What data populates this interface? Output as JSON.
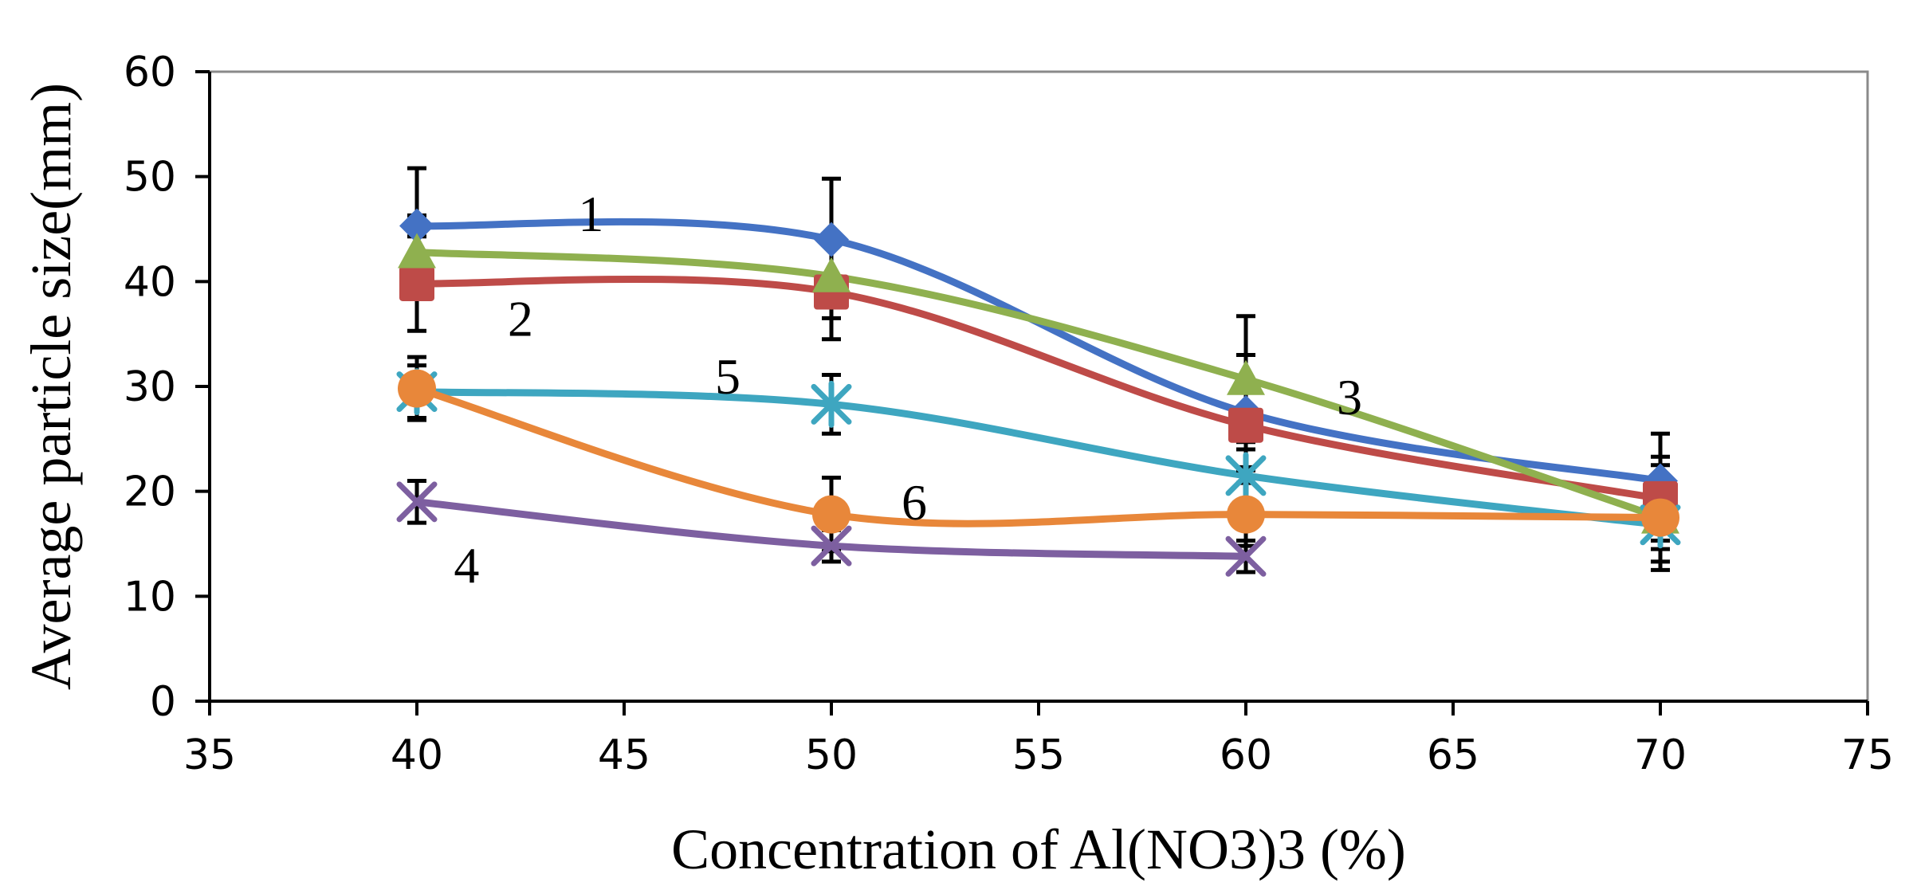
{
  "chart_data": {
    "type": "line",
    "title": "",
    "xlabel": "Concentration of Al(NO3)3 (%)",
    "ylabel": "Average particle size(mm)",
    "xlim": [
      35,
      75
    ],
    "ylim": [
      0,
      60
    ],
    "xticks": [
      "35",
      "40",
      "45",
      "50",
      "55",
      "60",
      "65",
      "70",
      "75"
    ],
    "yticks": [
      "0",
      "10",
      "20",
      "30",
      "40",
      "50",
      "60"
    ],
    "grid": false,
    "legend": "none",
    "series": [
      {
        "name": "1",
        "label": "1",
        "color": "#4472C4",
        "marker": "diamond",
        "x": [
          40,
          50,
          60,
          70
        ],
        "y": [
          45.3,
          44.0,
          27.5,
          21.0
        ],
        "err": [
          5.5,
          5.8,
          5.5,
          4.5
        ]
      },
      {
        "name": "2",
        "label": "2",
        "color": "#BE4B48",
        "marker": "square",
        "x": [
          40,
          50,
          60,
          70
        ],
        "y": [
          39.8,
          39.0,
          26.3,
          19.3
        ],
        "err": [
          4.5,
          4.5,
          4.0,
          4.0
        ]
      },
      {
        "name": "3",
        "label": "3",
        "color": "#8FB04F",
        "marker": "triangle",
        "x": [
          40,
          50,
          60,
          70
        ],
        "y": [
          42.8,
          40.5,
          30.7,
          17.5
        ],
        "err": [
          3.5,
          4.0,
          6.0,
          5.0
        ]
      },
      {
        "name": "4",
        "label": "4",
        "color": "#7D5FA0",
        "marker": "x",
        "x": [
          40,
          50,
          60
        ],
        "y": [
          19.0,
          14.8,
          13.8
        ],
        "err": [
          2.0,
          1.5,
          1.5
        ]
      },
      {
        "name": "5",
        "label": "5",
        "color": "#3EA6C0",
        "marker": "asterisk",
        "x": [
          40,
          50,
          60,
          70
        ],
        "y": [
          29.5,
          28.3,
          21.5,
          16.8
        ],
        "err": [
          2.5,
          2.8,
          2.5,
          3.5
        ]
      },
      {
        "name": "6",
        "label": "6",
        "color": "#E8873A",
        "marker": "circle",
        "x": [
          40,
          50,
          60,
          70
        ],
        "y": [
          29.8,
          17.8,
          17.8,
          17.5
        ],
        "err": [
          3.0,
          3.5,
          3.0,
          3.0
        ]
      }
    ]
  }
}
